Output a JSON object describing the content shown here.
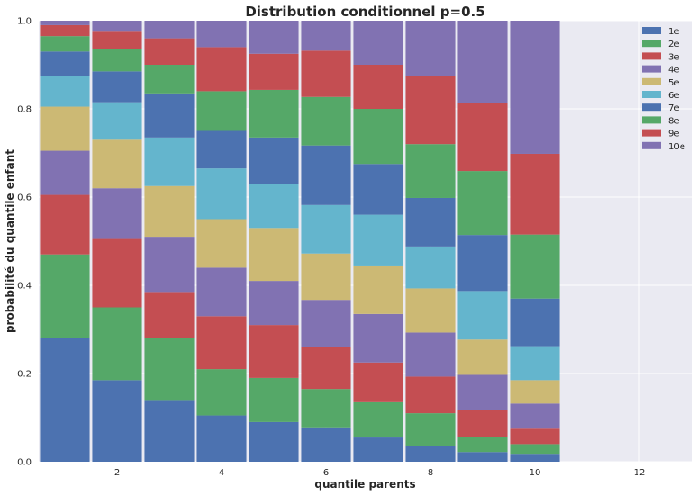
{
  "chart_data": {
    "type": "bar",
    "stacked": true,
    "title": "Distribution conditionnel p=0.5",
    "xlabel": "quantile parents",
    "ylabel": "probabilité du quantile enfant",
    "xlim": [
      0.5,
      13
    ],
    "ylim": [
      0,
      1.0
    ],
    "xticks": [
      2,
      4,
      6,
      8,
      10,
      12
    ],
    "yticks": [
      0.0,
      0.2,
      0.4,
      0.6,
      0.8,
      1.0
    ],
    "ytick_labels": [
      "0.0",
      "0.2",
      "0.4",
      "0.6",
      "0.8",
      "1.0"
    ],
    "grid": true,
    "legend_position": "top-right",
    "categories": [
      1,
      2,
      3,
      4,
      5,
      6,
      7,
      8,
      9,
      10
    ],
    "series": [
      {
        "name": "1e",
        "color": "#4c72b0",
        "values": [
          0.28,
          0.185,
          0.14,
          0.105,
          0.09,
          0.078,
          0.055,
          0.035,
          0.022,
          0.018
        ]
      },
      {
        "name": "2e",
        "color": "#55a868",
        "values": [
          0.19,
          0.165,
          0.14,
          0.105,
          0.1,
          0.087,
          0.08,
          0.075,
          0.035,
          0.022
        ]
      },
      {
        "name": "3e",
        "color": "#c44e52",
        "values": [
          0.135,
          0.155,
          0.105,
          0.12,
          0.12,
          0.095,
          0.09,
          0.083,
          0.06,
          0.035
        ]
      },
      {
        "name": "4e",
        "color": "#8172b2",
        "values": [
          0.1,
          0.115,
          0.125,
          0.11,
          0.1,
          0.107,
          0.11,
          0.1,
          0.08,
          0.057
        ]
      },
      {
        "name": "5e",
        "color": "#ccb974",
        "values": [
          0.1,
          0.11,
          0.115,
          0.11,
          0.12,
          0.105,
          0.11,
          0.1,
          0.08,
          0.053
        ]
      },
      {
        "name": "6e",
        "color": "#64b5cd",
        "values": [
          0.07,
          0.085,
          0.11,
          0.115,
          0.1,
          0.11,
          0.115,
          0.095,
          0.11,
          0.077
        ]
      },
      {
        "name": "7e",
        "color": "#4c72b0",
        "values": [
          0.055,
          0.07,
          0.1,
          0.085,
          0.105,
          0.135,
          0.115,
          0.11,
          0.127,
          0.108
        ]
      },
      {
        "name": "8e",
        "color": "#55a868",
        "values": [
          0.035,
          0.05,
          0.065,
          0.09,
          0.108,
          0.11,
          0.125,
          0.122,
          0.145,
          0.145
        ]
      },
      {
        "name": "9e",
        "color": "#c44e52",
        "values": [
          0.025,
          0.04,
          0.06,
          0.1,
          0.082,
          0.105,
          0.1,
          0.155,
          0.155,
          0.183
        ]
      },
      {
        "name": "10e",
        "color": "#8172b2",
        "values": [
          0.01,
          0.025,
          0.04,
          0.06,
          0.075,
          0.068,
          0.1,
          0.125,
          0.186,
          0.302
        ]
      }
    ]
  },
  "colors": {
    "plot_background": "#eaeaf2",
    "grid": "#ffffff",
    "text": "#262626"
  }
}
